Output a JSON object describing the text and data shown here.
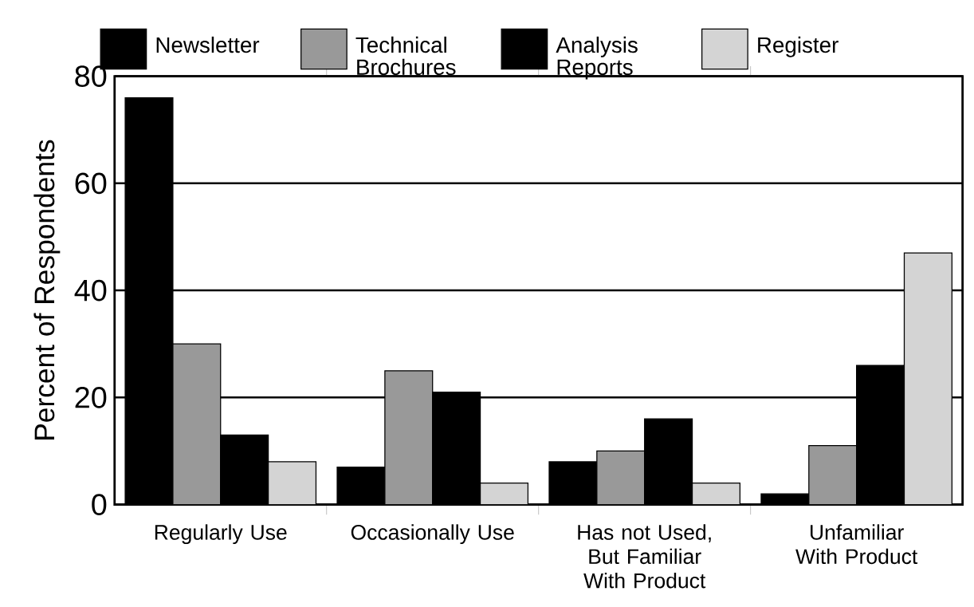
{
  "chart_data": {
    "type": "bar",
    "ylabel": "Percent of Respondents",
    "categories": [
      "Regularly Use",
      "Occasionally Use",
      "Has not Used, But Familiar With Product",
      "Unfamiliar With Product"
    ],
    "series": [
      {
        "name": "Newsletter",
        "color": "#000000",
        "values": [
          76,
          7,
          8,
          2
        ]
      },
      {
        "name": "Technical Brochures",
        "color": "#999999",
        "values": [
          30,
          25,
          10,
          11
        ]
      },
      {
        "name": "Analysis Reports",
        "color": "#000000",
        "values": [
          13,
          21,
          16,
          26
        ]
      },
      {
        "name": "Register",
        "color": "#d4d4d4",
        "values": [
          8,
          4,
          4,
          47
        ]
      }
    ],
    "ylim": [
      0,
      80
    ],
    "yticks": [
      0,
      20,
      40,
      60,
      80
    ],
    "grid": "y",
    "legend": "top"
  }
}
